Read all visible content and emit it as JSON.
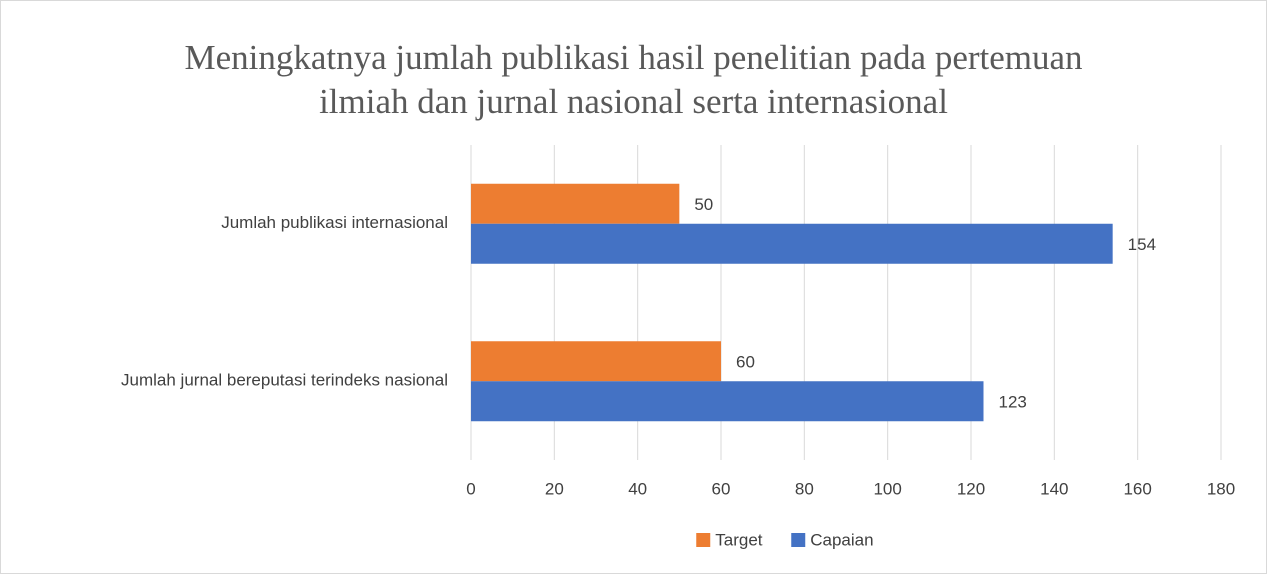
{
  "chart_data": {
    "type": "hbar",
    "title": "Meningkatnya jumlah publikasi hasil penelitian pada pertemuan ilmiah dan jurnal nasional serta internasional",
    "categories": [
      "Jumlah publikasi internasional",
      "Jumlah jurnal bereputasi terindeks nasional"
    ],
    "series": [
      {
        "name": "Target",
        "color": "#ed7d31",
        "values": [
          50,
          60
        ]
      },
      {
        "name": "Capaian",
        "color": "#4472c4",
        "values": [
          154,
          123
        ]
      }
    ],
    "xlim": [
      0,
      180
    ],
    "xticks": [
      0,
      20,
      40,
      60,
      80,
      100,
      120,
      140,
      160,
      180
    ],
    "grid": true,
    "legend": "bottom"
  }
}
